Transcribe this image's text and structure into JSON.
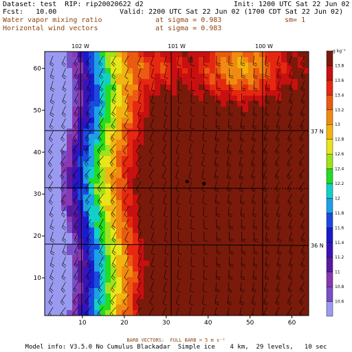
{
  "header": {
    "dataset": "Dataset: test  RIP: rip20020622 d2",
    "fcst": "Fcst:   10.00",
    "init": "Init: 1200 UTC Sat 22 Jun 02",
    "valid": "Valid: 2200 UTC Sat 22 Jun 02 (1700 CDT Sat 22 Jun 02)",
    "field1": "Water vapor mixing ratio",
    "field1_sigma": "at sigma = 0.983",
    "field1_sm": "sm= 1",
    "field2": "Horizontal wind vectors",
    "field2_sigma": "at sigma = 0.983"
  },
  "map": {
    "lon_labels": [
      "102 W",
      "101 W",
      "100 W"
    ],
    "lat_labels": [
      "37 N",
      "36 N"
    ]
  },
  "footer": {
    "barb_note": "BARB VECTORS:  FULL BARB = 5 m s⁻¹",
    "model_info": "Model info: V3.5.0 No Cumulus Blackadar  Simple ice    4 km,  29 levels,   10 sec"
  },
  "colors": {
    "low": "#7878e8",
    "mid": "#22dd22",
    "high": "#ee2200",
    "barb": "#000000"
  },
  "chart_data": {
    "type": "heatmap",
    "title": "Water vapor mixing ratio",
    "xlabel": "",
    "ylabel": "",
    "xlim": [
      1,
      64
    ],
    "ylim": [
      1,
      64
    ],
    "x_ticks": [
      "10",
      "20",
      "30",
      "40",
      "50",
      "60"
    ],
    "y_ticks": [
      "10",
      "20",
      "30",
      "40",
      "50",
      "60"
    ],
    "colorbar_unit": "g kg⁻¹",
    "colorbar_levels": [
      "10.6",
      "10.8",
      "11",
      "11.2",
      "11.4",
      "11.6",
      "11.8",
      "12",
      "12.2",
      "12.4",
      "12.6",
      "12.8",
      "13",
      "13.2",
      "13.4",
      "13.6",
      "13.8"
    ],
    "colorbar_colors": [
      "#9a9af0",
      "#7b4fc6",
      "#8838b0",
      "#5a1aa0",
      "#3a12b8",
      "#1a1acc",
      "#1a4ae0",
      "#1ea0e6",
      "#12d0c8",
      "#22dd22",
      "#a0e21a",
      "#e6e61a",
      "#f2b410",
      "#f08a10",
      "#ea5a10",
      "#e62810",
      "#c81010",
      "#7a1a0a"
    ],
    "points": [
      {
        "x": 35,
        "y": 33
      },
      {
        "x": 39,
        "y": 32.5
      }
    ],
    "legend_position": "right"
  }
}
